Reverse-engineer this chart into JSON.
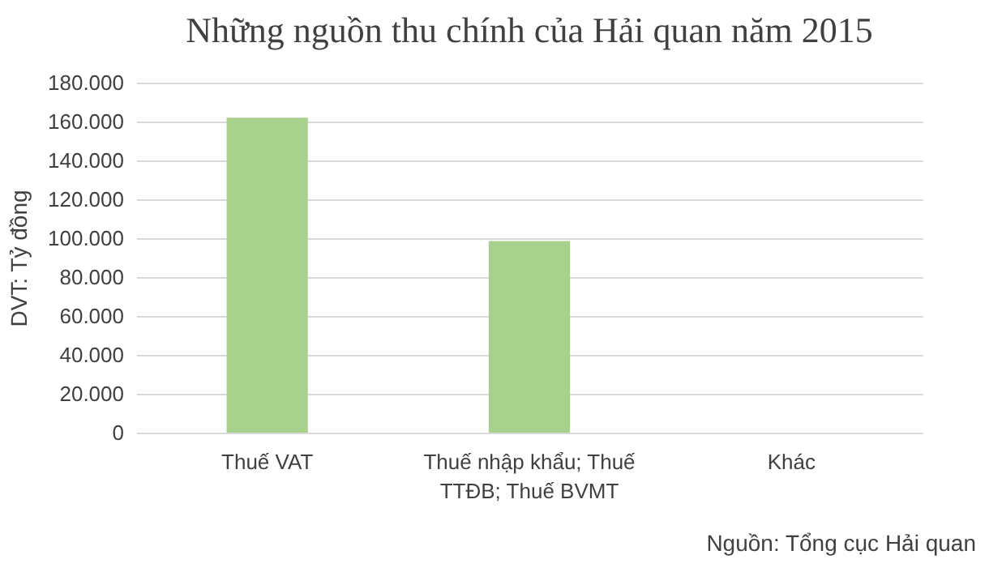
{
  "chart_data": {
    "type": "bar",
    "title": "Những nguồn thu chính của Hải quan năm 2015",
    "ylabel": "DVT: Tỷ đồng",
    "categories": [
      "Thuế VAT",
      "Thuế nhập khẩu; Thuế TTĐB; Thuế BVMT",
      "Khác"
    ],
    "values": [
      162000,
      98500,
      0
    ],
    "color": "#a9d18e",
    "ylim": [
      0,
      180000
    ],
    "yticks": [
      {
        "value": 0,
        "label": "0"
      },
      {
        "value": 20000,
        "label": "20.000"
      },
      {
        "value": 40000,
        "label": "40.000"
      },
      {
        "value": 60000,
        "label": "60.000"
      },
      {
        "value": 80000,
        "label": "80.000"
      },
      {
        "value": 100000,
        "label": "100.000"
      },
      {
        "value": 120000,
        "label": "120.000"
      },
      {
        "value": 140000,
        "label": "140.000"
      },
      {
        "value": 160000,
        "label": "160.000"
      },
      {
        "value": 180000,
        "label": "180.000"
      }
    ],
    "grid": true,
    "annotations": [
      "Nguồn: Tổng cục Hải quan"
    ]
  }
}
